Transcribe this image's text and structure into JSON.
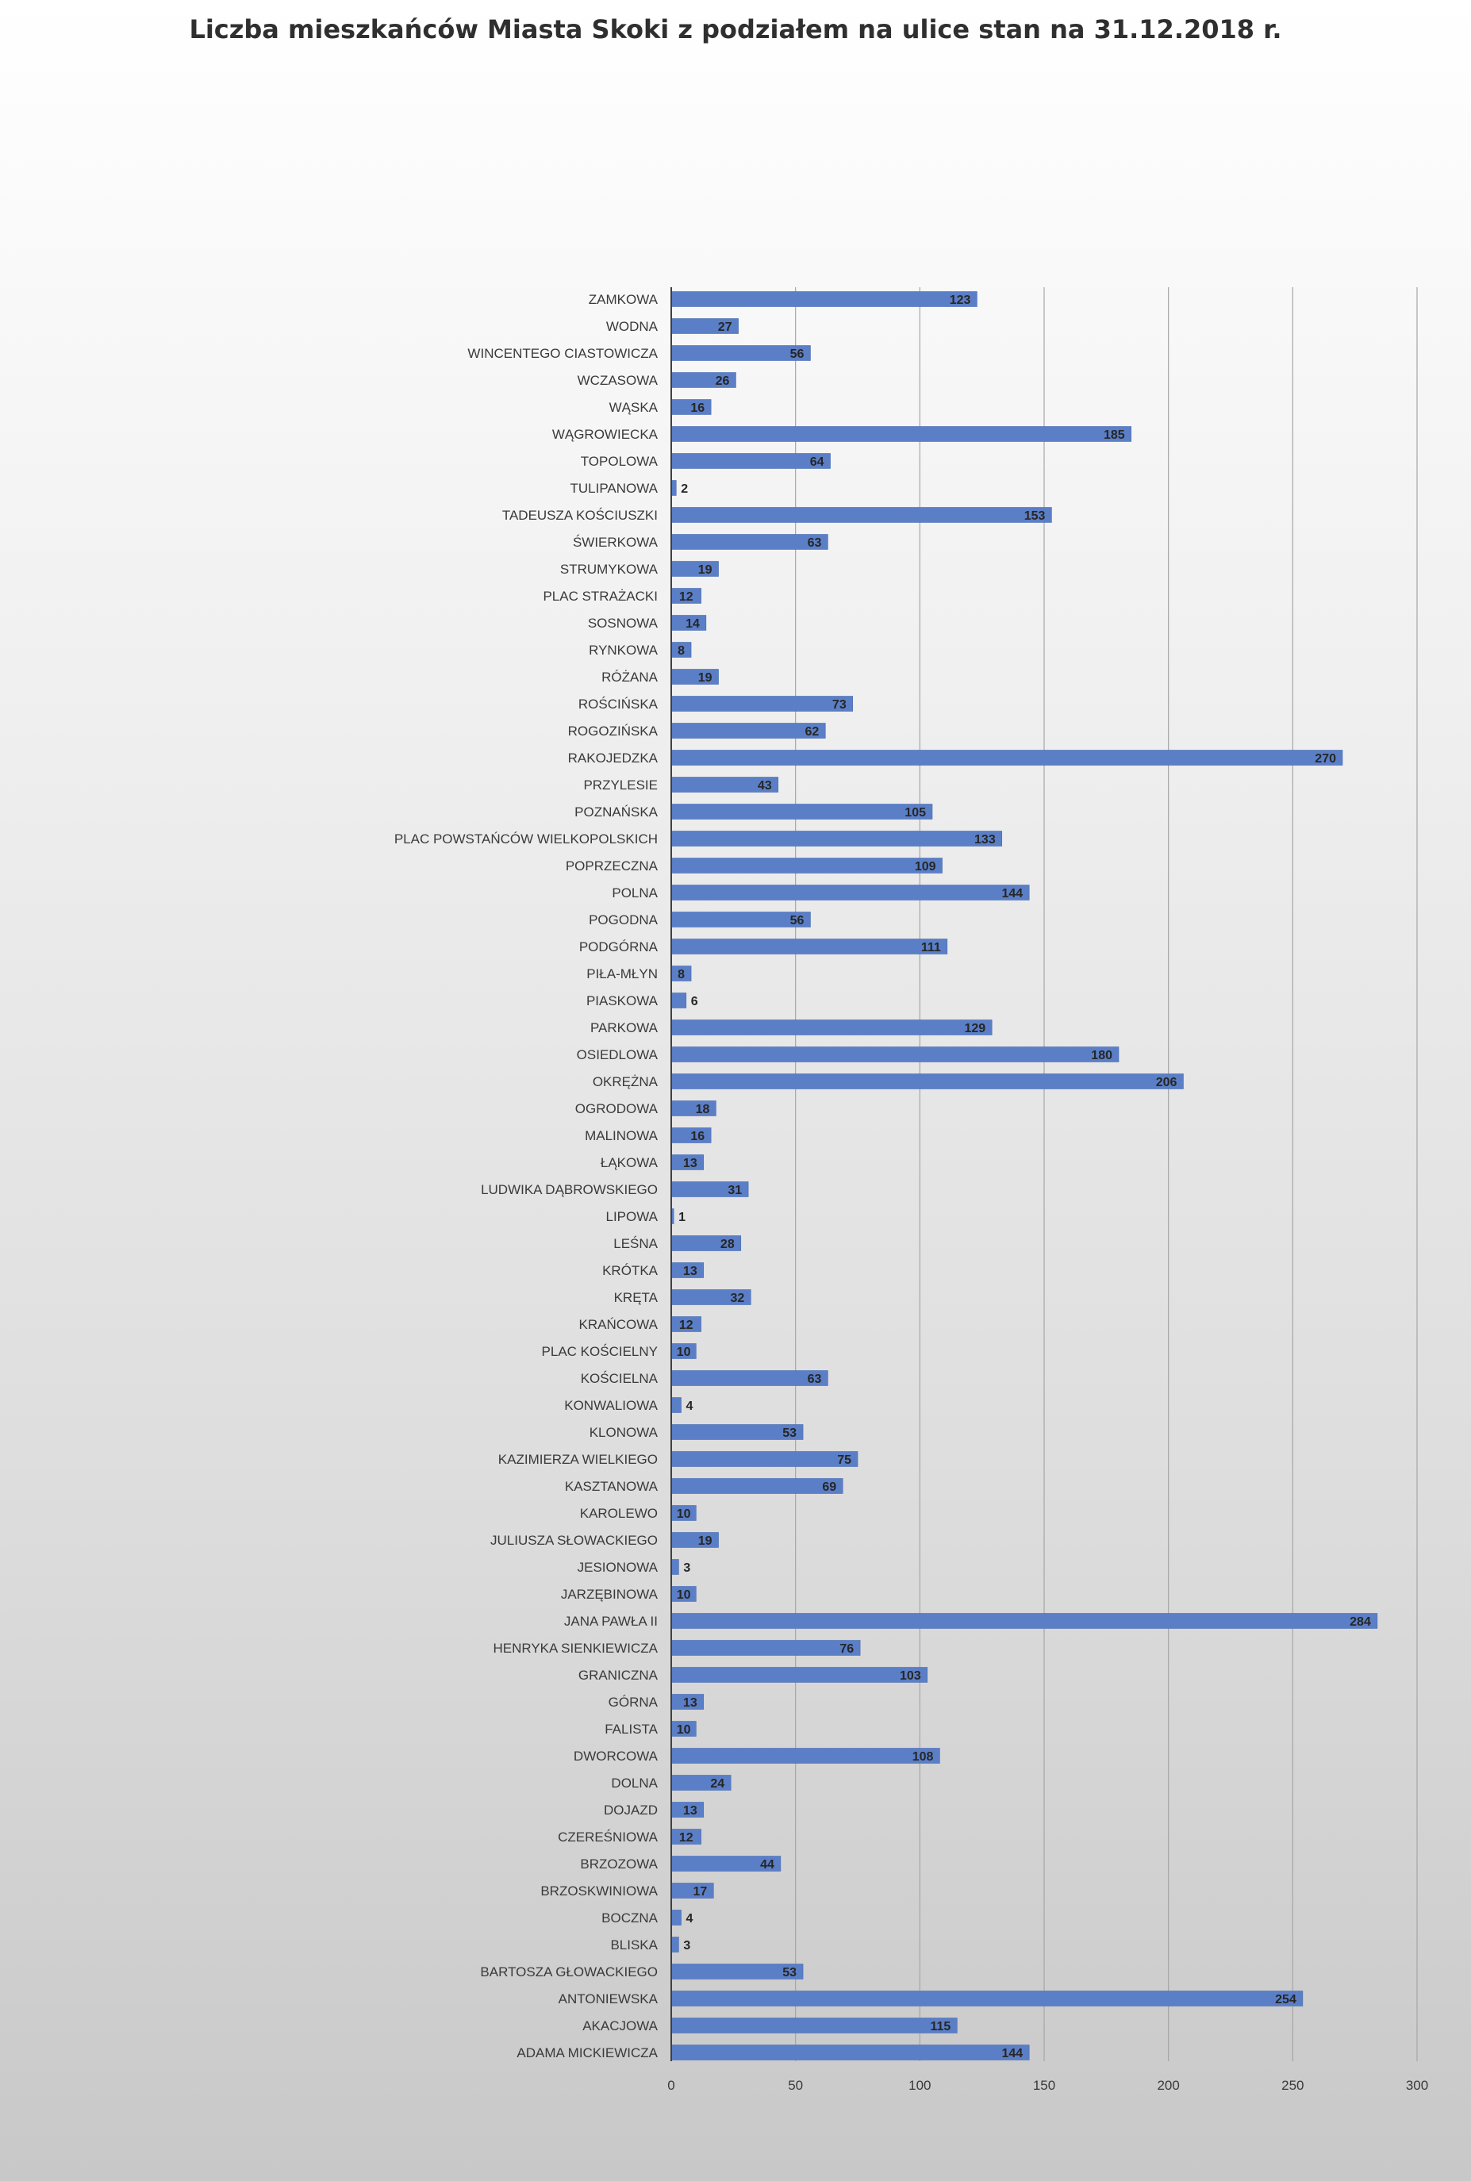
{
  "chart_data": {
    "type": "bar",
    "orientation": "horizontal",
    "title": "Liczba mieszkańców Miasta Skoki z podziałem na ulice stan na 31.12.2018 r.",
    "xlabel": "",
    "ylabel": "",
    "xlim": [
      0,
      300
    ],
    "xticks": [
      0,
      50,
      100,
      150,
      200,
      250,
      300
    ],
    "grid": true,
    "legend": "none",
    "bar_color": "#5b7fc7",
    "categories": [
      "ZAMKOWA",
      "WODNA",
      "WINCENTEGO CIASTOWICZA",
      "WCZASOWA",
      "WĄSKA",
      "WĄGROWIECKA",
      "TOPOLOWA",
      "TULIPANOWA",
      "TADEUSZA KOŚCIUSZKI",
      "ŚWIERKOWA",
      "STRUMYKOWA",
      "PLAC STRAŻACKI",
      "SOSNOWA",
      "RYNKOWA",
      "RÓŻANA",
      "ROŚCIŃSKA",
      "ROGOZIŃSKA",
      "RAKOJEDZKA",
      "PRZYLESIE",
      "POZNAŃSKA",
      "PLAC POWSTAŃCÓW WIELKOPOLSKICH",
      "POPRZECZNA",
      "POLNA",
      "POGODNA",
      "PODGÓRNA",
      "PIŁA-MŁYN",
      "PIASKOWA",
      "PARKOWA",
      "OSIEDLOWA",
      "OKRĘŻNA",
      "OGRODOWA",
      "MALINOWA",
      "ŁĄKOWA",
      "LUDWIKA DĄBROWSKIEGO",
      "LIPOWA",
      "LEŚNA",
      "KRÓTKA",
      "KRĘTA",
      "KRAŃCOWA",
      "PLAC KOŚCIELNY",
      "KOŚCIELNA",
      "KONWALIOWA",
      "KLONOWA",
      "KAZIMIERZA WIELKIEGO",
      "KASZTANOWA",
      "KAROLEWO",
      "JULIUSZA SŁOWACKIEGO",
      "JESIONOWA",
      "JARZĘBINOWA",
      "JANA PAWŁA II",
      "HENRYKA SIENKIEWICZA",
      "GRANICZNA",
      "GÓRNA",
      "FALISTA",
      "DWORCOWA",
      "DOLNA",
      "DOJAZD",
      "CZEREŚNIOWA",
      "BRZOZOWA",
      "BRZOSKWINIOWA",
      "BOCZNA",
      "BLISKA",
      "BARTOSZA GŁOWACKIEGO",
      "ANTONIEWSKA",
      "AKACJOWA",
      "ADAMA MICKIEWICZA"
    ],
    "values": [
      123,
      27,
      56,
      26,
      16,
      185,
      64,
      2,
      153,
      63,
      19,
      12,
      14,
      8,
      19,
      73,
      62,
      270,
      43,
      105,
      133,
      109,
      144,
      56,
      111,
      8,
      6,
      129,
      180,
      206,
      18,
      16,
      13,
      31,
      1,
      28,
      13,
      32,
      12,
      10,
      63,
      4,
      53,
      75,
      69,
      10,
      19,
      3,
      10,
      284,
      76,
      103,
      13,
      10,
      108,
      24,
      13,
      12,
      44,
      17,
      4,
      3,
      53,
      254,
      115,
      144
    ]
  }
}
